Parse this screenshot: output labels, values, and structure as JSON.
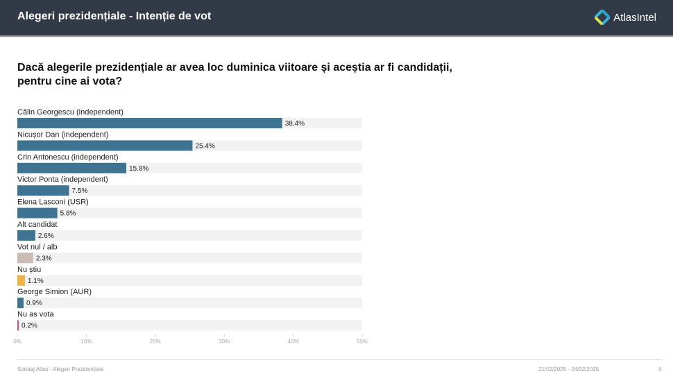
{
  "header": {
    "title": "Alegeri prezidențiale - Intenție de vot",
    "brand": "AtlasIntel"
  },
  "question": "Dacă alegerile prezidențiale ar avea loc duminica viitoare și aceștia ar fi candidații, pentru cine ai vota?",
  "chart_data": {
    "type": "bar",
    "orientation": "horizontal",
    "categories": [
      "Călin Georgescu (independent)",
      "Nicușor Dan (independent)",
      "Crin Antonescu (independent)",
      "Victor Ponta (independent)",
      "Elena Lasconi (USR)",
      "Alt candidat",
      "Vot nul / alb",
      "Nu știu",
      "George Simion (AUR)",
      "Nu as vota"
    ],
    "values": [
      38.4,
      25.4,
      15.8,
      7.5,
      5.8,
      2.6,
      2.3,
      1.1,
      0.9,
      0.2
    ],
    "value_labels": [
      "38.4%",
      "25.4%",
      "15.8%",
      "7.5%",
      "5.8%",
      "2.6%",
      "2.3%",
      "1.1%",
      "0.9%",
      "0.2%"
    ],
    "colors": [
      "#3e7492",
      "#3e7492",
      "#3e7492",
      "#3e7492",
      "#3e7492",
      "#3e7492",
      "#cbbcb3",
      "#efb044",
      "#3e7492",
      "#e0487c"
    ],
    "track_color": "#f2f2f2",
    "xlim": [
      0,
      50
    ],
    "x_ticks": [
      "0%",
      "10%",
      "20%",
      "30%",
      "40%",
      "50%"
    ]
  },
  "footer": {
    "source": "Sondaj Atlas - Alegeri Prezidențiale",
    "dates": "21/02/2025 - 24/02/2025",
    "page": "4"
  }
}
